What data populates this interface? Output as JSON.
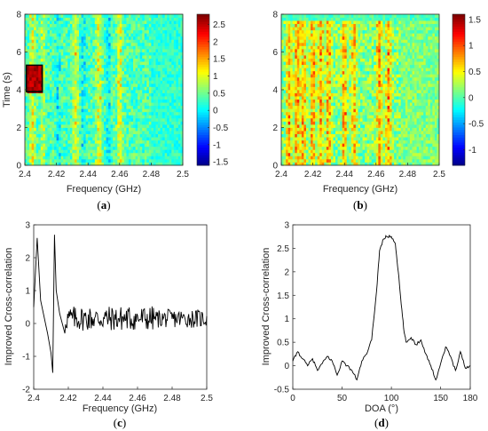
{
  "chart_data": [
    {
      "id": "a",
      "type": "heatmap",
      "panel_label": "a",
      "xlabel": "Frequency (GHz)",
      "ylabel": "Time (s)",
      "xlim": [
        2.4,
        2.5
      ],
      "ylim": [
        0,
        8
      ],
      "xticks": [
        "2.4",
        "2.42",
        "2.44",
        "2.46",
        "2.48",
        "2.5"
      ],
      "yticks": [
        "0",
        "2",
        "4",
        "6",
        "8"
      ],
      "colorbar": {
        "min": -1.6,
        "max": 2.8,
        "ticks": [
          "2.5",
          "2",
          "1.5",
          "1",
          "0.5",
          "0",
          "-0.5",
          "-1",
          "-1.5"
        ]
      },
      "highlight_box": {
        "x": [
          2.401,
          2.411
        ],
        "y": [
          3.9,
          5.3
        ]
      },
      "bright_columns_ghz": [
        2.405,
        2.412,
        2.46,
        2.447,
        2.432
      ],
      "dark_columns_ghz": [
        2.413,
        2.421,
        2.437,
        2.453
      ],
      "colormap": "jet",
      "grid": false
    },
    {
      "id": "b",
      "type": "heatmap",
      "panel_label": "b",
      "xlabel": "Frequency (GHz)",
      "xlim": [
        2.4,
        2.5
      ],
      "ylim": [
        0,
        8
      ],
      "xticks": [
        "2.4",
        "2.42",
        "2.44",
        "2.46",
        "2.48",
        "2.5"
      ],
      "yticks": [
        "0",
        "2",
        "4",
        "6",
        "8"
      ],
      "colorbar": {
        "min": -1.3,
        "max": 1.6,
        "ticks": [
          "1.5",
          "1",
          "0.5",
          "0",
          "-0.5",
          "-1"
        ]
      },
      "bright_columns_ghz": [
        2.405,
        2.41,
        2.414,
        2.42,
        2.425,
        2.43,
        2.44,
        2.446,
        2.462,
        2.468
      ],
      "colormap": "jet",
      "grid": false
    },
    {
      "id": "c",
      "type": "line",
      "panel_label": "c",
      "xlabel": "Frequency (GHz)",
      "ylabel": "Improved Cross-correlation",
      "xlim": [
        2.4,
        2.5
      ],
      "ylim": [
        -2,
        3
      ],
      "xticks": [
        "2.4",
        "2.42",
        "2.44",
        "2.46",
        "2.48",
        "2.5"
      ],
      "yticks": [
        "-2",
        "-1",
        "0",
        "1",
        "2",
        "3"
      ],
      "key_points": {
        "x": [
          2.4,
          2.402,
          2.404,
          2.406,
          2.408,
          2.41,
          2.411,
          2.412,
          2.413,
          2.415,
          2.418
        ],
        "y": [
          0.5,
          2.6,
          0.7,
          0.2,
          -0.3,
          -0.9,
          -1.5,
          2.7,
          1.0,
          0.3,
          -0.3
        ]
      },
      "noise_band": {
        "x": [
          2.418,
          2.5
        ],
        "mean": 0.15,
        "amplitude": 0.35
      },
      "grid": false
    },
    {
      "id": "d",
      "type": "line",
      "panel_label": "d",
      "xlabel": "DOA (°)",
      "ylabel": "Improved Cross-correlation",
      "xlim": [
        0,
        180
      ],
      "ylim": [
        -0.5,
        3
      ],
      "xticks": [
        "0",
        "50",
        "100",
        "150",
        "180"
      ],
      "yticks": [
        "-0.5",
        "0",
        "0.5",
        "1",
        "1.5",
        "2",
        "2.5",
        "3"
      ],
      "x": [
        0,
        5,
        10,
        15,
        20,
        25,
        30,
        35,
        40,
        45,
        50,
        55,
        60,
        65,
        70,
        75,
        80,
        85,
        88,
        92,
        95,
        100,
        104,
        107,
        110,
        113,
        115,
        120,
        125,
        130,
        135,
        140,
        145,
        150,
        155,
        160,
        165,
        170,
        175,
        180
      ],
      "y": [
        0.1,
        0.3,
        0.15,
        0.0,
        0.15,
        -0.1,
        0.05,
        0.2,
        0.1,
        -0.2,
        0.1,
        0.0,
        -0.1,
        -0.3,
        0.1,
        0.25,
        0.55,
        1.6,
        2.45,
        2.7,
        2.75,
        2.75,
        2.6,
        2.0,
        1.3,
        0.7,
        0.5,
        0.6,
        0.45,
        0.55,
        0.25,
        0.0,
        -0.3,
        0.05,
        0.4,
        0.2,
        -0.1,
        0.3,
        -0.05,
        0.0
      ],
      "grid": false
    }
  ]
}
